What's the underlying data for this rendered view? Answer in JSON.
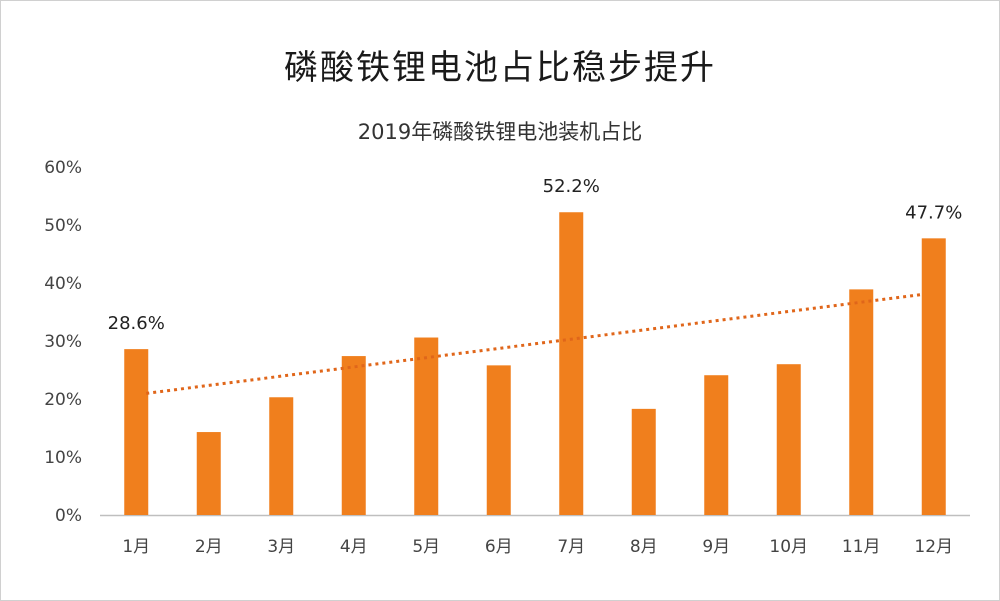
{
  "page": {
    "main_title": "磷酸铁锂电池占比稳步提升"
  },
  "chart_data": {
    "type": "bar",
    "title": "2019年磷酸铁锂电池装机占比",
    "categories": [
      "1月",
      "2月",
      "3月",
      "4月",
      "5月",
      "6月",
      "7月",
      "8月",
      "9月",
      "10月",
      "11月",
      "12月"
    ],
    "values": [
      28.6,
      14.3,
      20.3,
      27.4,
      30.6,
      25.8,
      52.2,
      18.3,
      24.1,
      26.0,
      38.9,
      47.7
    ],
    "ylim": [
      0,
      60
    ],
    "yticks": [
      "0%",
      "10%",
      "20%",
      "30%",
      "40%",
      "50%",
      "60%"
    ],
    "data_labels": [
      {
        "index": 0,
        "text": "28.6%"
      },
      {
        "index": 6,
        "text": "52.2%"
      },
      {
        "index": 11,
        "text": "47.7%"
      }
    ],
    "trendline": {
      "type": "linear",
      "style": "dotted"
    },
    "colors": {
      "bar": "#f07f1d",
      "trend": "#e0661a",
      "axis": "#bfbfbf"
    }
  }
}
